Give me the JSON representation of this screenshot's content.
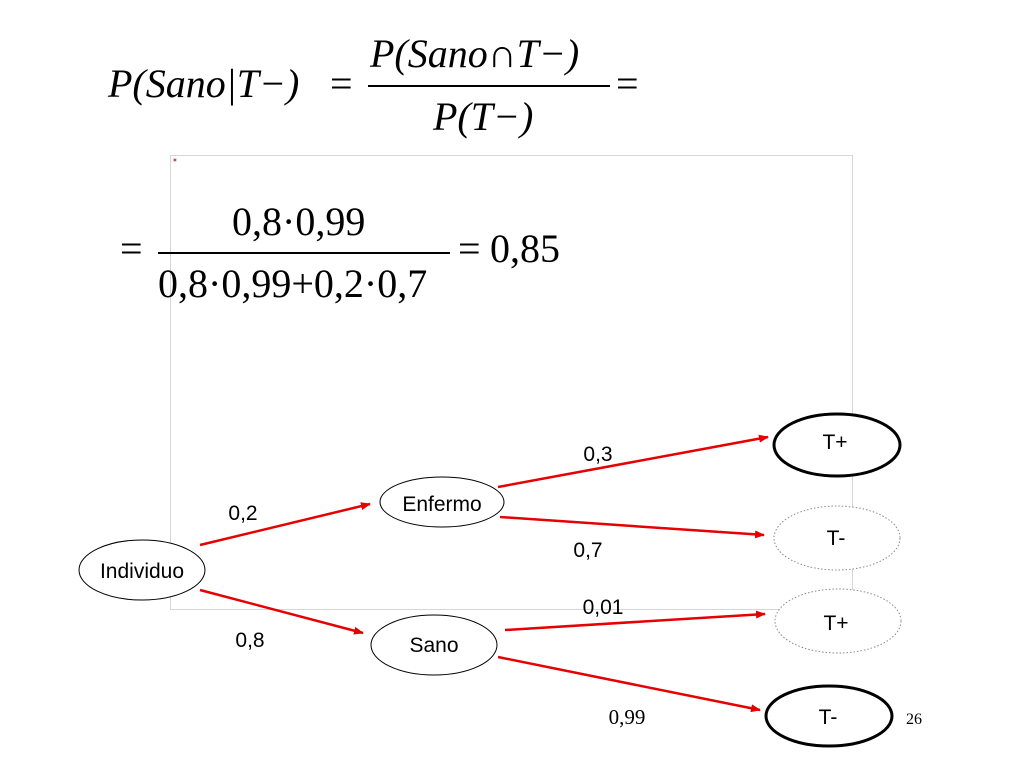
{
  "formula1": {
    "lhs": "P(Sano|T−)",
    "equals": "=",
    "numerator": "P(Sano∩T−)",
    "denominator": "P(T−)",
    "trailing_equals": "="
  },
  "formula2": {
    "leading_equals": "=",
    "numerator": "0,8·0,99",
    "denominator": "0,8·0,99+0,2·0,7",
    "equals": "=",
    "result": "0,85"
  },
  "tree": {
    "nodes": {
      "root": "Individuo",
      "enfermo": "Enfermo",
      "sano": "Sano",
      "enfermo_pos": "T+",
      "enfermo_neg": "T-",
      "sano_pos": "T+",
      "sano_neg": "T-"
    },
    "edges": {
      "root_enfermo": "0,2",
      "root_sano": "0,8",
      "enfermo_pos": "0,3",
      "enfermo_neg": "0,7",
      "sano_pos": "0,01",
      "sano_neg": "0,99"
    },
    "edge_color": "#e60000"
  },
  "page_number": "26"
}
